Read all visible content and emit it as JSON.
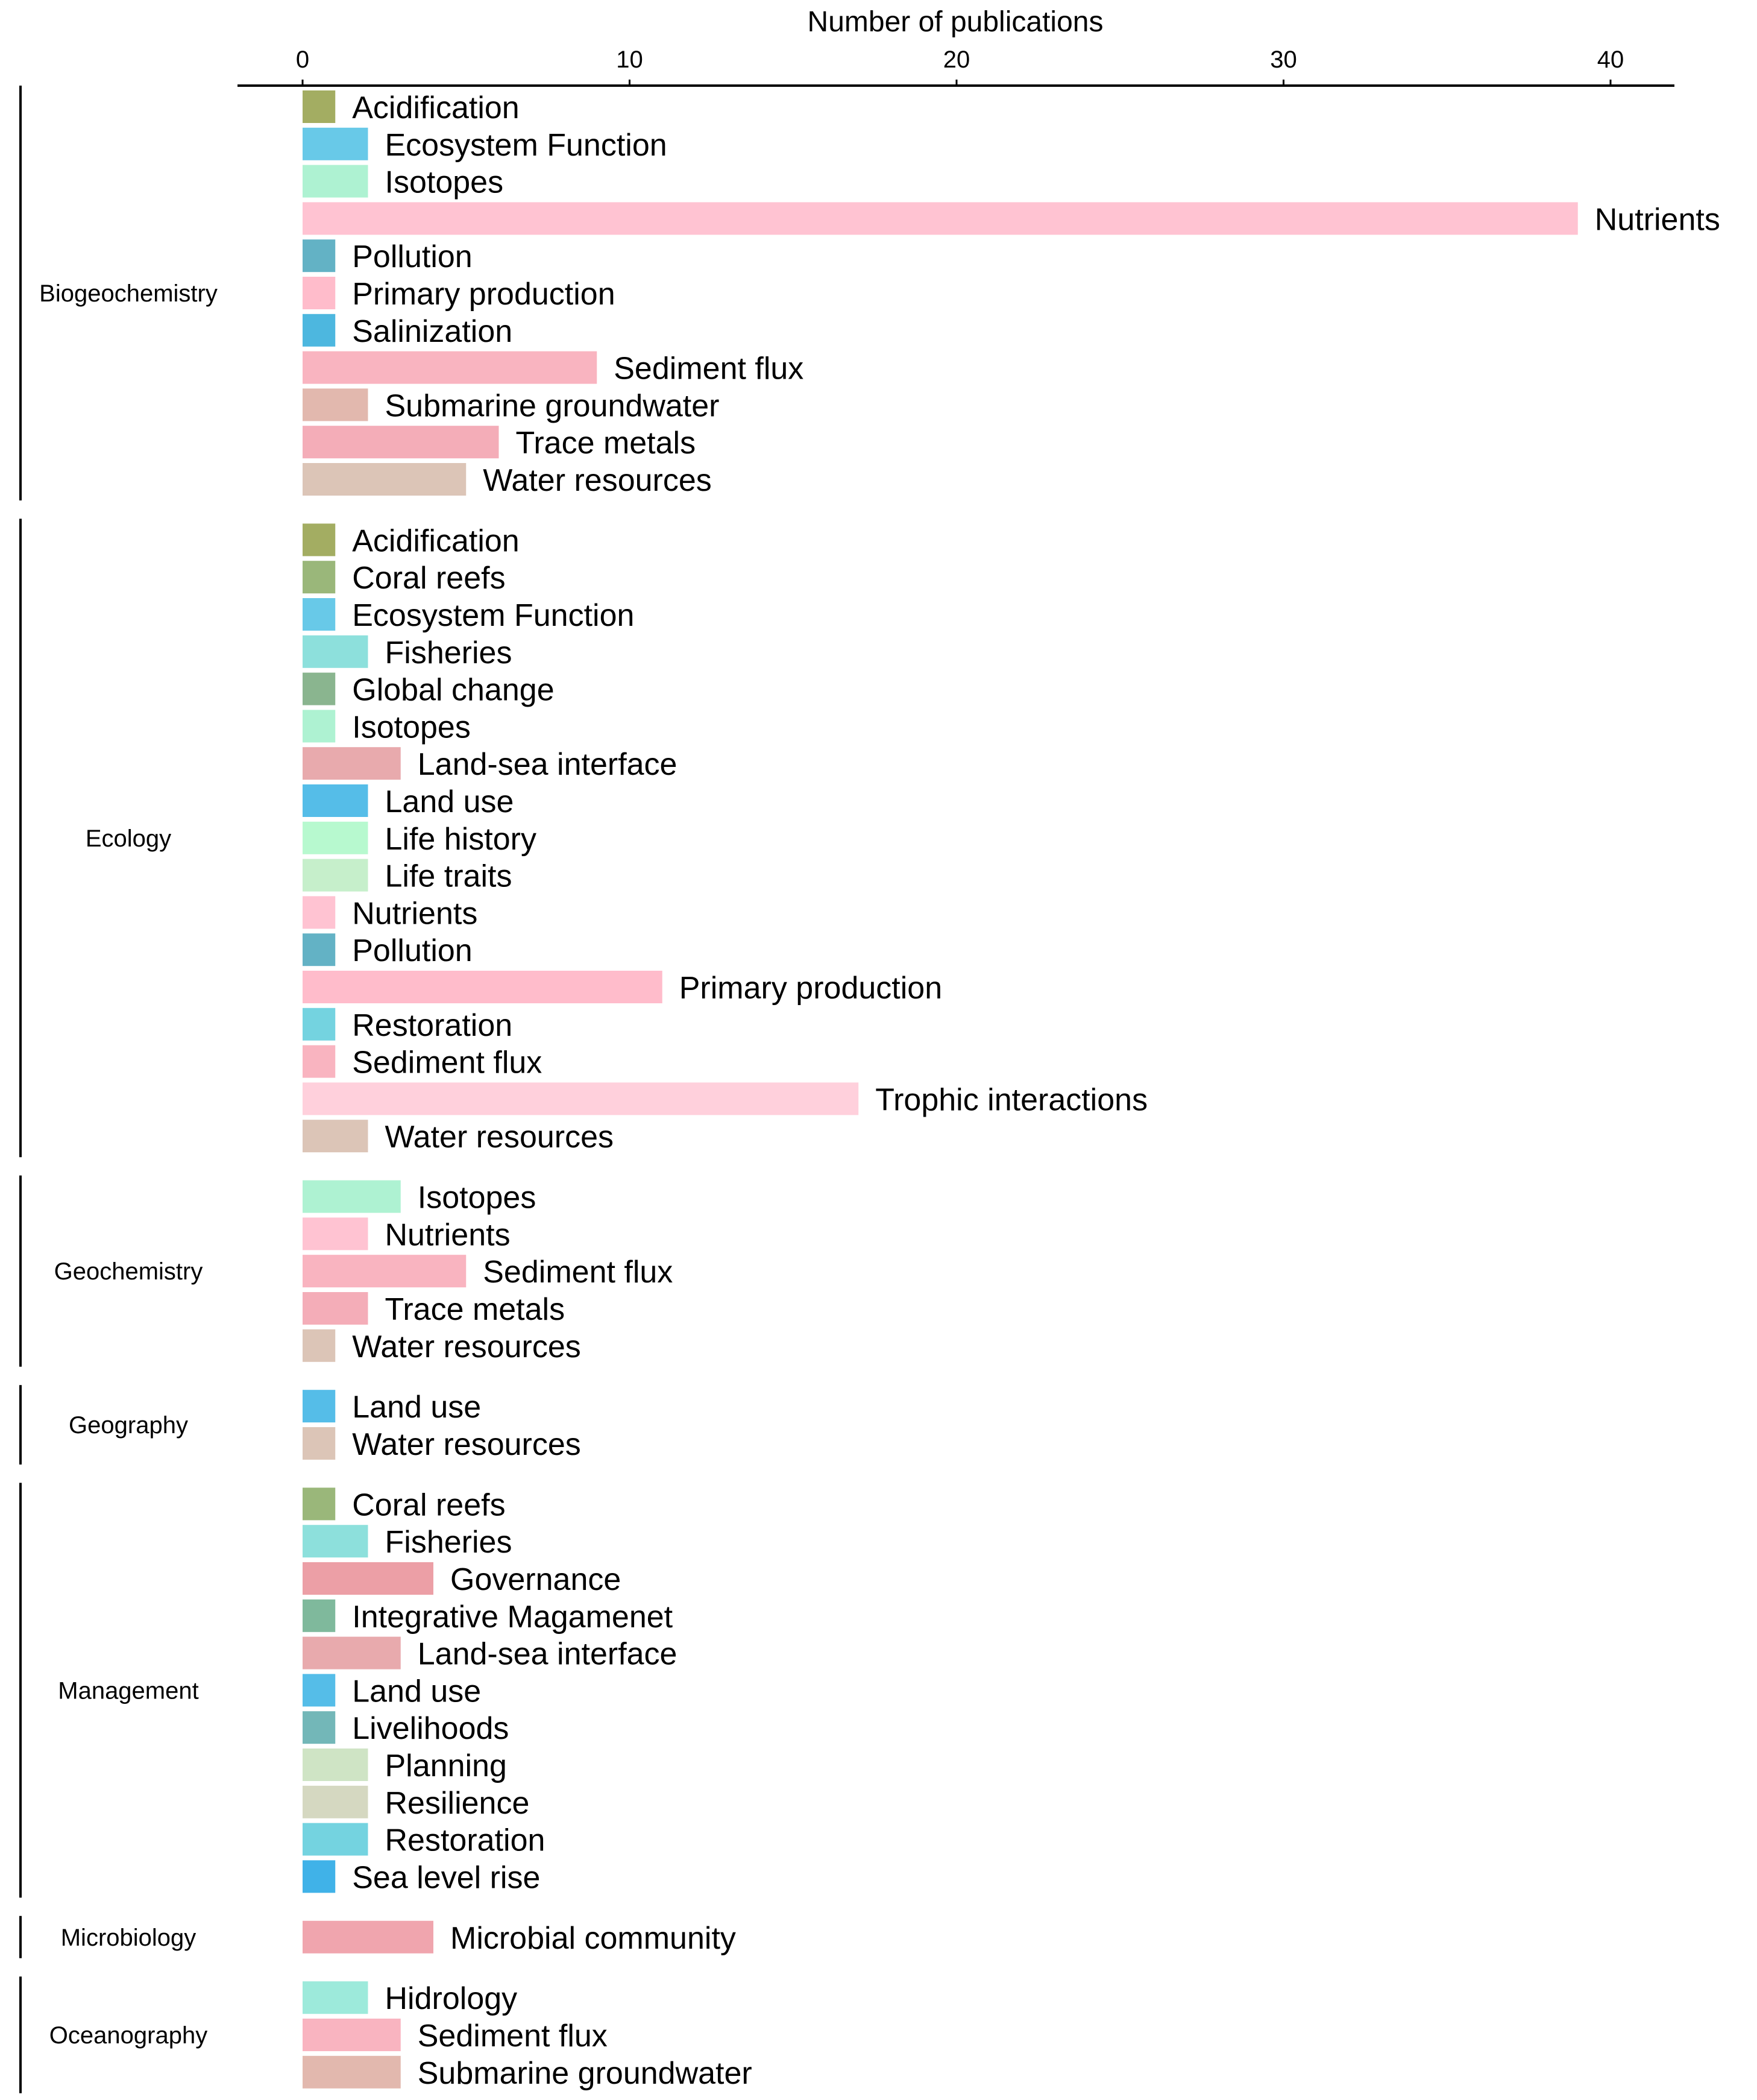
{
  "chart_data": {
    "type": "bar",
    "orientation": "horizontal",
    "title": "",
    "xlabel": "Number of publications",
    "ylabel": "",
    "xlim": [
      0,
      40
    ],
    "x_ticks": [
      "0",
      "10",
      "20",
      "30",
      "40"
    ],
    "x_axis_position": "top",
    "grid": false,
    "legend": "none",
    "groups": [
      {
        "name": "Biogeochemistry",
        "bars": [
          {
            "label": "Acidification",
            "value": 1,
            "color": "#a3ad62"
          },
          {
            "label": "Ecosystem Function",
            "value": 2,
            "color": "#68c9e8"
          },
          {
            "label": "Isotopes",
            "value": 2,
            "color": "#aef2d2"
          },
          {
            "label": "Nutrients",
            "value": 39,
            "color": "#ffc3d2"
          },
          {
            "label": "Pollution",
            "value": 1,
            "color": "#63b2c5"
          },
          {
            "label": "Primary production",
            "value": 1,
            "color": "#ffbccb"
          },
          {
            "label": "Salinization",
            "value": 1,
            "color": "#4db7df"
          },
          {
            "label": "Sediment flux",
            "value": 9,
            "color": "#f9b4c0"
          },
          {
            "label": "Submarine groundwater",
            "value": 2,
            "color": "#e2b8ae"
          },
          {
            "label": "Trace metals",
            "value": 6,
            "color": "#f4adb8"
          },
          {
            "label": "Water resources",
            "value": 5,
            "color": "#dcc5b7"
          }
        ]
      },
      {
        "name": "Ecology",
        "bars": [
          {
            "label": "Acidification",
            "value": 1,
            "color": "#a3ad62"
          },
          {
            "label": "Coral reefs",
            "value": 1,
            "color": "#9ab77a"
          },
          {
            "label": "Ecosystem Function",
            "value": 1,
            "color": "#68c9e8"
          },
          {
            "label": "Fisheries",
            "value": 2,
            "color": "#8de0dc"
          },
          {
            "label": "Global change",
            "value": 1,
            "color": "#8ab58f"
          },
          {
            "label": "Isotopes",
            "value": 1,
            "color": "#aef2d2"
          },
          {
            "label": "Land-sea interface",
            "value": 3,
            "color": "#e8aaad"
          },
          {
            "label": "Land use",
            "value": 2,
            "color": "#55bde8"
          },
          {
            "label": "Life history",
            "value": 2,
            "color": "#b7f9cf"
          },
          {
            "label": "Life traits",
            "value": 2,
            "color": "#c6efcb"
          },
          {
            "label": "Nutrients",
            "value": 1,
            "color": "#ffc3d2"
          },
          {
            "label": "Pollution",
            "value": 1,
            "color": "#63b2c5"
          },
          {
            "label": "Primary production",
            "value": 11,
            "color": "#ffbccb"
          },
          {
            "label": "Restoration",
            "value": 1,
            "color": "#74d3e0"
          },
          {
            "label": "Sediment flux",
            "value": 1,
            "color": "#f9b4c0"
          },
          {
            "label": "Trophic interactions",
            "value": 17,
            "color": "#ffd0dc"
          },
          {
            "label": "Water resources",
            "value": 2,
            "color": "#dcc5b7"
          }
        ]
      },
      {
        "name": "Geochemistry",
        "bars": [
          {
            "label": "Isotopes",
            "value": 3,
            "color": "#aef2d2"
          },
          {
            "label": "Nutrients",
            "value": 2,
            "color": "#ffc3d2"
          },
          {
            "label": "Sediment flux",
            "value": 5,
            "color": "#f9b4c0"
          },
          {
            "label": "Trace metals",
            "value": 2,
            "color": "#f4adb8"
          },
          {
            "label": "Water resources",
            "value": 1,
            "color": "#dcc5b7"
          }
        ]
      },
      {
        "name": "Geography",
        "bars": [
          {
            "label": "Land use",
            "value": 1,
            "color": "#55bde8"
          },
          {
            "label": "Water resources",
            "value": 1,
            "color": "#dcc5b7"
          }
        ]
      },
      {
        "name": "Management",
        "bars": [
          {
            "label": "Coral reefs",
            "value": 1,
            "color": "#9ab77a"
          },
          {
            "label": "Fisheries",
            "value": 2,
            "color": "#8de0dc"
          },
          {
            "label": "Governance",
            "value": 4,
            "color": "#ec9fa6"
          },
          {
            "label": "Integrative Magamenet",
            "value": 1,
            "color": "#7fb99c"
          },
          {
            "label": "Land-sea interface",
            "value": 3,
            "color": "#e8aaad"
          },
          {
            "label": "Land use",
            "value": 1,
            "color": "#55bde8"
          },
          {
            "label": "Livelihoods",
            "value": 1,
            "color": "#73b7b8"
          },
          {
            "label": "Planning",
            "value": 2,
            "color": "#cfe4c5"
          },
          {
            "label": "Resilience",
            "value": 2,
            "color": "#d5d8c1"
          },
          {
            "label": "Restoration",
            "value": 2,
            "color": "#74d3e0"
          },
          {
            "label": "Sea level rise",
            "value": 1,
            "color": "#40b2e8"
          }
        ]
      },
      {
        "name": "Microbiology",
        "bars": [
          {
            "label": "Microbial community",
            "value": 4,
            "color": "#f0a5ae"
          }
        ]
      },
      {
        "name": "Oceanography",
        "bars": [
          {
            "label": "Hidrology",
            "value": 2,
            "color": "#9deadb"
          },
          {
            "label": "Sediment flux",
            "value": 3,
            "color": "#f9b4c0"
          },
          {
            "label": "Submarine groundwater",
            "value": 3,
            "color": "#e2b8ae"
          }
        ]
      }
    ]
  }
}
